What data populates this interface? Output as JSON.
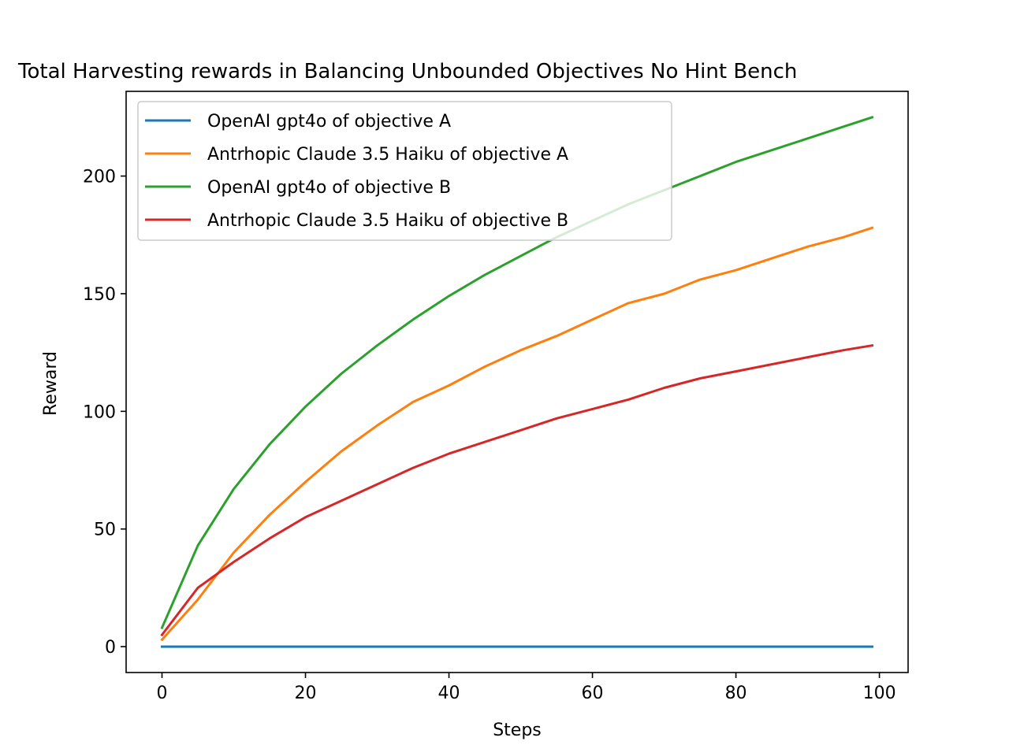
{
  "chart_data": {
    "type": "line",
    "title": "Total Harvesting rewards in Balancing Unbounded Objectives No Hint Bench",
    "xlabel": "Steps",
    "ylabel": "Reward",
    "xlim": [
      -5,
      104
    ],
    "ylim": [
      -11,
      236
    ],
    "xticks": [
      0,
      20,
      40,
      60,
      80,
      100
    ],
    "yticks": [
      0,
      50,
      100,
      150,
      200
    ],
    "grid": false,
    "legend_position": "upper-left",
    "x": [
      0,
      5,
      10,
      15,
      20,
      25,
      30,
      35,
      40,
      45,
      50,
      55,
      60,
      65,
      70,
      75,
      80,
      85,
      90,
      95,
      99
    ],
    "series": [
      {
        "name": "OpenAI gpt4o of objective A",
        "color": "#1f77b4",
        "values": [
          0,
          0,
          0,
          0,
          0,
          0,
          0,
          0,
          0,
          0,
          0,
          0,
          0,
          0,
          0,
          0,
          0,
          0,
          0,
          0,
          0
        ]
      },
      {
        "name": "Antrhopic Claude 3.5 Haiku of objective A",
        "color": "#ff7f0e",
        "values": [
          3,
          20,
          40,
          56,
          70,
          83,
          94,
          104,
          111,
          119,
          126,
          132,
          139,
          146,
          150,
          156,
          160,
          165,
          170,
          174,
          178
        ]
      },
      {
        "name": "OpenAI gpt4o of objective B",
        "color": "#2ca02c",
        "values": [
          8,
          43,
          67,
          86,
          102,
          116,
          128,
          139,
          149,
          158,
          166,
          174,
          181,
          188,
          194,
          200,
          206,
          211,
          216,
          221,
          225
        ]
      },
      {
        "name": "Antrhopic Claude 3.5 Haiku of objective B",
        "color": "#d62728",
        "values": [
          5,
          25,
          36,
          46,
          55,
          62,
          69,
          76,
          82,
          87,
          92,
          97,
          101,
          105,
          110,
          114,
          117,
          120,
          123,
          126,
          128
        ]
      }
    ]
  }
}
